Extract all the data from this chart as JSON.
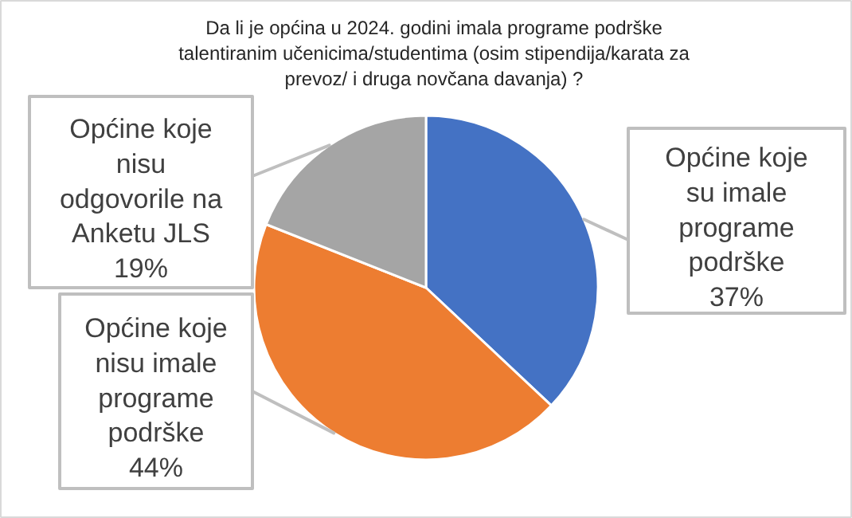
{
  "chart_data": {
    "type": "pie",
    "title": "Da li je općina u 2024. godini imala programe podrške talentiranim učenicima/studentima (osim stipendija/karata za prevoz/ i druga novčana davanja) ?",
    "categories": [
      "Općine koje su imale programe podrške",
      "Općine koje nisu imale programe podrške",
      "Općine koje nisu odgovorile na Anketu JLS"
    ],
    "values": [
      37,
      44,
      19
    ],
    "colors": [
      "#4472c4",
      "#ed7d31",
      "#a5a5a5"
    ],
    "value_labels": [
      "37%",
      "44%",
      "19%"
    ]
  }
}
